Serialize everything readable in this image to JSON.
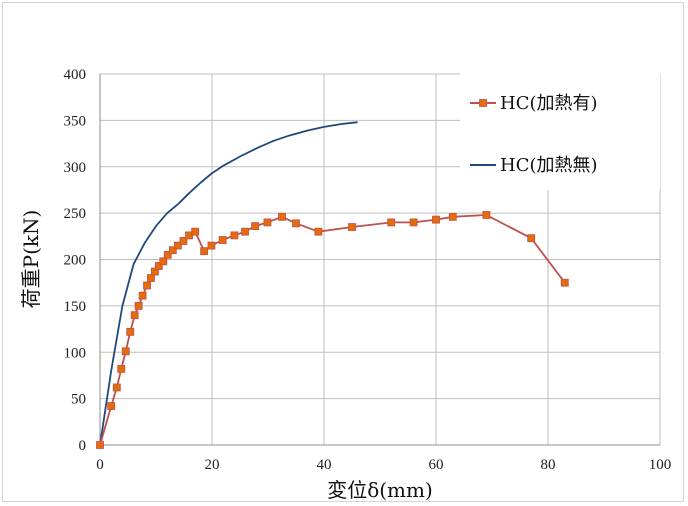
{
  "chart_data": {
    "type": "line",
    "title": "",
    "xlabel": "変位δ(mm)",
    "ylabel": "荷重P(kN)",
    "xlim": [
      0,
      100
    ],
    "ylim": [
      0,
      400
    ],
    "xticks": [
      "0",
      "20",
      "40",
      "60",
      "80",
      "100"
    ],
    "yticks": [
      "0",
      "50",
      "100",
      "150",
      "200",
      "250",
      "300",
      "350",
      "400"
    ],
    "grid": true,
    "legend_position": "top-right",
    "series": [
      {
        "name": "HC(加熱有)",
        "color": "#c0504d",
        "marker": "square",
        "marker_color": "#e46c0a",
        "points": [
          [
            0,
            0
          ],
          [
            2,
            42
          ],
          [
            3,
            62
          ],
          [
            3.8,
            82
          ],
          [
            4.6,
            101
          ],
          [
            5.4,
            122
          ],
          [
            6.2,
            140
          ],
          [
            6.9,
            150
          ],
          [
            7.6,
            161
          ],
          [
            8.4,
            172
          ],
          [
            9.1,
            180
          ],
          [
            9.8,
            187
          ],
          [
            10.5,
            193
          ],
          [
            11.3,
            198
          ],
          [
            12.1,
            205
          ],
          [
            13,
            210
          ],
          [
            13.9,
            215
          ],
          [
            14.9,
            220
          ],
          [
            15.9,
            226
          ],
          [
            17,
            230
          ],
          [
            18.6,
            209
          ],
          [
            19.9,
            215
          ],
          [
            21.9,
            221
          ],
          [
            24,
            226
          ],
          [
            25.9,
            230
          ],
          [
            27.7,
            236
          ],
          [
            29.9,
            240
          ],
          [
            32.5,
            246
          ],
          [
            35,
            239
          ],
          [
            39,
            230
          ],
          [
            45,
            235
          ],
          [
            52,
            240
          ],
          [
            56,
            240
          ],
          [
            60,
            243
          ],
          [
            63,
            246
          ],
          [
            69,
            248
          ],
          [
            77,
            223
          ],
          [
            83,
            175
          ]
        ]
      },
      {
        "name": "HC(加熱無)",
        "color": "#1f497d",
        "marker": "none",
        "points": [
          [
            0,
            0
          ],
          [
            2,
            80
          ],
          [
            4,
            150
          ],
          [
            6,
            195
          ],
          [
            8,
            218
          ],
          [
            10,
            236
          ],
          [
            12,
            250
          ],
          [
            14,
            260
          ],
          [
            16,
            272
          ],
          [
            18,
            283
          ],
          [
            20,
            293
          ],
          [
            22,
            301
          ],
          [
            25,
            311
          ],
          [
            28,
            320
          ],
          [
            31,
            328
          ],
          [
            34,
            334
          ],
          [
            37,
            339
          ],
          [
            40,
            343
          ],
          [
            43,
            346
          ],
          [
            46,
            348
          ]
        ]
      }
    ]
  }
}
